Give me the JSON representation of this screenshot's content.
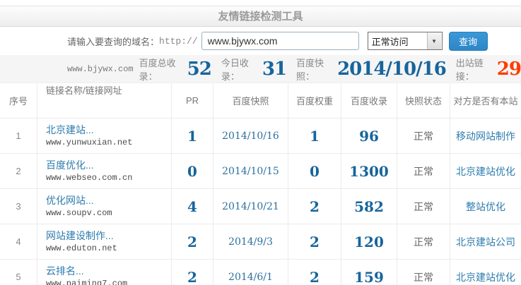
{
  "header": {
    "title": "友情链接检测工具"
  },
  "form": {
    "label": "请输入要查询的域名：",
    "protocol": "http://",
    "domain_value": "www.bjywx.com",
    "status_value": "正常访问",
    "query_label": "查询"
  },
  "stats": {
    "domain": "www.bjywx.com",
    "total_label": "百度总收录：",
    "total_value": "52",
    "today_label": "今日收录：",
    "today_value": "31",
    "snapshot_label": "百度快照：",
    "snapshot_value": "2014/10/16",
    "outbound_label": "出站链接：",
    "outbound_value": "29"
  },
  "table": {
    "headers": [
      "序号",
      "链接名称/链接网址",
      "PR",
      "百度快照",
      "百度权重",
      "百度收录",
      "快照状态",
      "对方是否有本站"
    ],
    "rows": [
      {
        "no": "1",
        "name": "北京建站...",
        "url": "www.yunwuxian.net",
        "pr": "1",
        "snapshot": "2014/10/16",
        "weight": "1",
        "indexed": "96",
        "status": "正常",
        "reciprocal": "移动网站制作"
      },
      {
        "no": "2",
        "name": "百度优化...",
        "url": "www.webseo.com.cn",
        "pr": "0",
        "snapshot": "2014/10/15",
        "weight": "0",
        "indexed": "1300",
        "status": "正常",
        "reciprocal": "北京建站优化"
      },
      {
        "no": "3",
        "name": "优化网站...",
        "url": "www.soupv.com",
        "pr": "4",
        "snapshot": "2014/10/21",
        "weight": "2",
        "indexed": "582",
        "status": "正常",
        "reciprocal": "整站优化"
      },
      {
        "no": "4",
        "name": "网站建设制作...",
        "url": "www.eduton.net",
        "pr": "2",
        "snapshot": "2014/9/3",
        "weight": "2",
        "indexed": "120",
        "status": "正常",
        "reciprocal": "北京建站公司"
      },
      {
        "no": "5",
        "name": "云排名...",
        "url": "www.paiming7.com",
        "pr": "2",
        "snapshot": "2014/6/1",
        "weight": "2",
        "indexed": "159",
        "status": "正常",
        "reciprocal": "北京建站优化"
      }
    ]
  },
  "icons": {
    "chevron_down": "▼"
  },
  "colors": {
    "link-blue": "#2e7cad",
    "number-blue": "#17659c",
    "alert-red": "#ff3c00",
    "button-blue": "#3a99d8",
    "button-border": "#2b7cb4"
  }
}
